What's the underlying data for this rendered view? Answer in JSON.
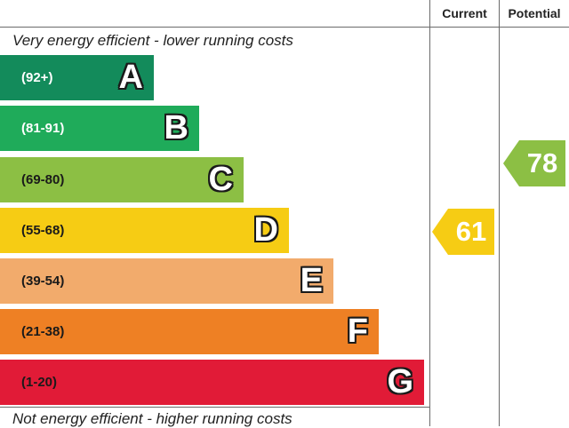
{
  "headers": {
    "current": "Current",
    "potential": "Potential"
  },
  "captions": {
    "top": "Very energy efficient - lower running costs",
    "bottom": "Not energy efficient - higher running costs"
  },
  "bands": [
    {
      "letter": "A",
      "range": "(92+)",
      "color": "#138b5b",
      "text_color": "#ffffff"
    },
    {
      "letter": "B",
      "range": "(81-91)",
      "color": "#1fab5a",
      "text_color": "#ffffff"
    },
    {
      "letter": "C",
      "range": "(69-80)",
      "color": "#8cbf44",
      "text_color": "#1a1a1a"
    },
    {
      "letter": "D",
      "range": "(55-68)",
      "color": "#f6cc14",
      "text_color": "#1a1a1a"
    },
    {
      "letter": "E",
      "range": "(39-54)",
      "color": "#f2ab6c",
      "text_color": "#1a1a1a"
    },
    {
      "letter": "F",
      "range": "(21-38)",
      "color": "#ee8024",
      "text_color": "#1a1a1a"
    },
    {
      "letter": "G",
      "range": "(1-20)",
      "color": "#e11b37",
      "text_color": "#1a1a1a"
    }
  ],
  "current": {
    "value": "61",
    "band": "D",
    "color": "#f6cc14"
  },
  "potential": {
    "value": "78",
    "band": "C",
    "color": "#8cbf44"
  }
}
